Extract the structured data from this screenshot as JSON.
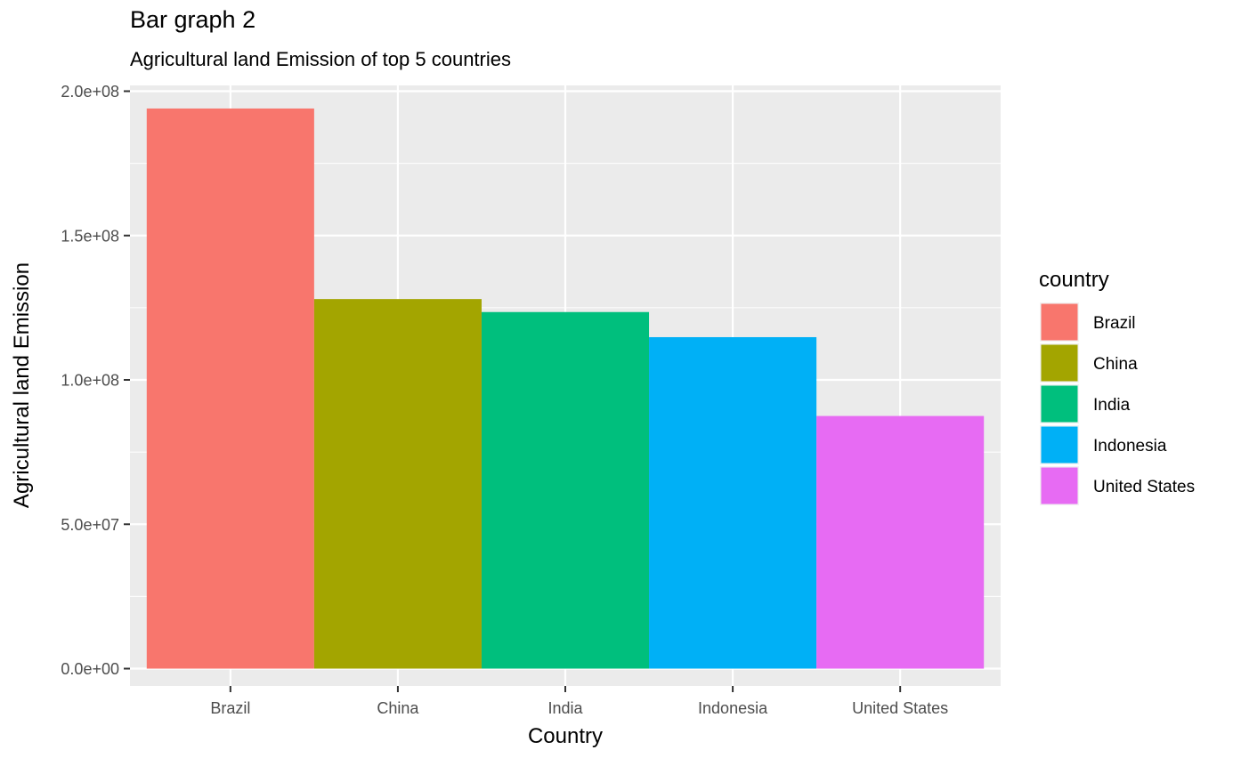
{
  "chart_data": {
    "type": "bar",
    "title": "Bar graph 2",
    "subtitle": "Agricultural land Emission of top 5 countries",
    "xlabel": "Country",
    "ylabel": "Agricultural land Emission",
    "categories": [
      "Brazil",
      "China",
      "India",
      "Indonesia",
      "United States"
    ],
    "values": [
      194000000,
      128000000,
      123500000,
      114800000,
      87500000
    ],
    "colors": [
      "#F8766D",
      "#A3A500",
      "#00BF7D",
      "#00B0F6",
      "#E76BF3"
    ],
    "ylim": [
      -6000000,
      202000000
    ],
    "yticks": [
      0,
      50000000,
      100000000,
      150000000,
      200000000
    ],
    "ytick_labels": [
      "0.0e+00",
      "5.0e+07",
      "1.0e+08",
      "1.5e+08",
      "2.0e+08"
    ],
    "grid": true,
    "panel_background": "#EBEBEB",
    "legend": {
      "title": "country",
      "position": "right",
      "entries": [
        "Brazil",
        "China",
        "India",
        "Indonesia",
        "United States"
      ]
    }
  }
}
